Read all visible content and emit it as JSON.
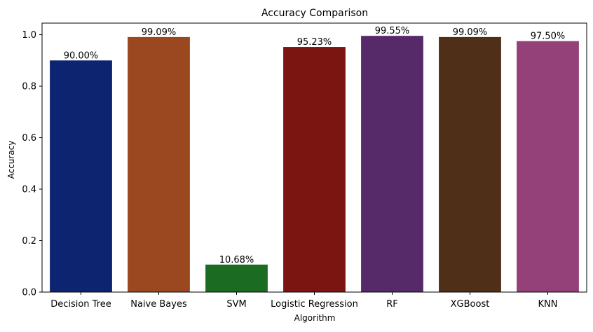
{
  "chart_data": {
    "type": "bar",
    "title": "Accuracy Comparison",
    "xlabel": "Algorithm",
    "ylabel": "Accuracy",
    "categories": [
      "Decision Tree",
      "Naive Bayes",
      "SVM",
      "Logistic Regression",
      "RF",
      "XGBoost",
      "KNN"
    ],
    "values": [
      0.9,
      0.9909,
      0.1068,
      0.9523,
      0.9955,
      0.9909,
      0.975
    ],
    "data_labels": [
      "90.00%",
      "99.09%",
      "10.68%",
      "95.23%",
      "99.55%",
      "99.09%",
      "97.50%"
    ],
    "colors": [
      "#0d2570",
      "#9b4820",
      "#1c6b23",
      "#7a1512",
      "#562a68",
      "#4f2f18",
      "#944179"
    ],
    "ylim": [
      0,
      1.045
    ],
    "yticks": [
      0.0,
      0.2,
      0.4,
      0.6,
      0.8,
      1.0
    ],
    "ytick_labels": [
      "0.0",
      "0.2",
      "0.4",
      "0.6",
      "0.8",
      "1.0"
    ],
    "grid": false,
    "legend": "none"
  }
}
